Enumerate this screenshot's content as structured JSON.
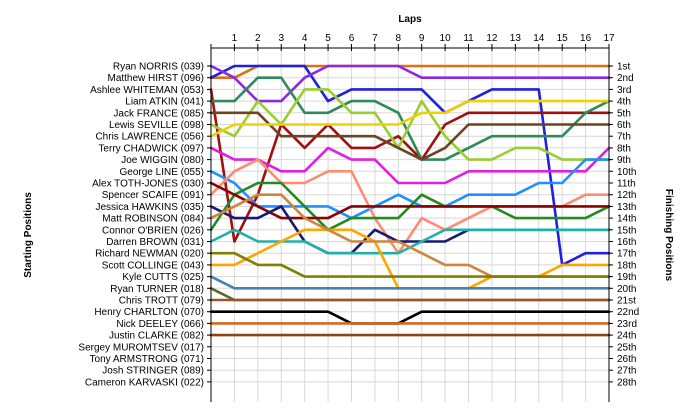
{
  "chart_data": {
    "type": "line",
    "title": "",
    "xlabel": "Laps",
    "ylabel_left": "Starting Positions",
    "ylabel_right": "Finishing Positions",
    "xlim": [
      0,
      17
    ],
    "laps": [
      1,
      2,
      3,
      4,
      5,
      6,
      7,
      8,
      9,
      10,
      11,
      12,
      13,
      14,
      15,
      16,
      17
    ],
    "ylim": [
      1,
      27
    ],
    "grid": true,
    "y_inverted": true,
    "drivers": [
      "Ryan NORRIS (039)",
      "Matthew HIRST (096)",
      "Ashlee WHITEMAN (053)",
      "Liam ATKIN (041)",
      "Jack FRANCE (085)",
      "Lewis SEVILLE (098)",
      "Chris LAWRENCE (056)",
      "Terry CHADWICK (097)",
      "Joe WIGGIN (080)",
      "George LINE (055)",
      "Alex TOTH-JONES (030)",
      "Spencer SCAIFE (091)",
      "Jessica HAWKINS (035)",
      "Matt ROBINSON (084)",
      "Connor O'BRIEN (026)",
      "Darren BROWN (031)",
      "Richard NEWMAN (020)",
      "Scott COLLINGE (043)",
      "Kyle CUTTS (025)",
      "Ryan TURNER (018)",
      "Chris TROTT (079)",
      "Henry CHARLTON (070)",
      "Nick DEELEY (066)",
      "Justin CLARKE (082)",
      "Sergey MUROMTSEV (017)",
      "Tony ARMSTRONG (071)",
      "Josh STRINGER (089)",
      "Cameron KARVASKI (022)"
    ],
    "finishing_labels": [
      "1st",
      "2nd",
      "3rd",
      "4th",
      "5th",
      "6th",
      "7th",
      "8th",
      "9th",
      "10th",
      "11th",
      "12th",
      "13th",
      "14th",
      "15th",
      "16th",
      "17th",
      "18th",
      "19th",
      "20th",
      "21st",
      "22nd",
      "23rd",
      "24th",
      "25th",
      "26th",
      "27th",
      "28th"
    ],
    "series": [
      {
        "color": "#e07010",
        "positions": [
          2,
          2,
          1,
          1,
          1,
          1,
          1,
          1,
          1,
          1,
          1,
          1,
          1,
          1,
          1,
          1,
          1,
          1
        ]
      },
      {
        "color": "#2020e0",
        "positions": [
          2,
          1,
          1,
          1,
          1,
          4,
          3,
          3,
          3,
          3,
          5,
          4,
          3,
          3,
          3,
          18,
          17,
          17
        ]
      },
      {
        "color": "#8a2be2",
        "positions": [
          1,
          2,
          4,
          4,
          2,
          1,
          1,
          1,
          1,
          2,
          2,
          2,
          2,
          2,
          2,
          2,
          2,
          2
        ]
      },
      {
        "color": "#a01010",
        "positions": [
          3,
          16,
          12,
          6,
          8,
          6,
          8,
          8,
          7,
          9,
          6,
          5,
          5,
          5,
          5,
          5,
          5,
          5
        ]
      },
      {
        "color": "#2e8b57",
        "positions": [
          4,
          4,
          2,
          2,
          5,
          5,
          4,
          4,
          5,
          9,
          9,
          8,
          7,
          7,
          7,
          7,
          5,
          4
        ]
      },
      {
        "color": "#9acd32",
        "positions": [
          6,
          7,
          4,
          6,
          3,
          3,
          5,
          5,
          8,
          4,
          7,
          9,
          9,
          8,
          8,
          9,
          9,
          9
        ]
      },
      {
        "color": "#6b4423",
        "positions": [
          5,
          5,
          5,
          7,
          7,
          7,
          7,
          7,
          8,
          9,
          8,
          6,
          6,
          6,
          6,
          6,
          6,
          6
        ]
      },
      {
        "color": "#f0d000",
        "positions": [
          7,
          6,
          6,
          6,
          6,
          6,
          6,
          6,
          6,
          5,
          5,
          4,
          4,
          4,
          4,
          4,
          4,
          4
        ]
      },
      {
        "color": "#e020e0",
        "positions": [
          8,
          9,
          9,
          10,
          10,
          8,
          9,
          9,
          11,
          11,
          11,
          10,
          10,
          10,
          10,
          10,
          10,
          8
        ]
      },
      {
        "color": "#1e90ff",
        "positions": [
          10,
          11,
          13,
          13,
          13,
          13,
          14,
          13,
          12,
          13,
          13,
          12,
          12,
          12,
          11,
          11,
          9,
          9
        ]
      },
      {
        "color": "#ff8c70",
        "positions": [
          12,
          10,
          9,
          11,
          11,
          10,
          10,
          14,
          17,
          14,
          15,
          14,
          13,
          13,
          13,
          13,
          12,
          12
        ]
      },
      {
        "color": "#228b22",
        "positions": [
          15,
          12,
          11,
          11,
          13,
          15,
          14,
          14,
          14,
          12,
          13,
          13,
          13,
          14,
          14,
          14,
          14,
          13
        ]
      },
      {
        "color": "#8b0000",
        "positions": [
          11,
          12,
          13,
          14,
          14,
          14,
          13,
          13,
          13,
          13,
          13,
          13,
          13,
          13,
          13,
          13,
          13,
          13
        ]
      },
      {
        "color": "#191970",
        "positions": [
          13,
          14,
          14,
          13,
          16,
          17,
          17,
          15,
          16,
          16,
          16,
          15,
          15,
          15,
          15,
          15,
          15,
          15
        ]
      },
      {
        "color": "#20b2aa",
        "positions": [
          16,
          15,
          16,
          16,
          16,
          17,
          17,
          17,
          17,
          16,
          15,
          15,
          15,
          15,
          15,
          15,
          15,
          15
        ]
      },
      {
        "color": "#ffa500",
        "positions": [
          18,
          18,
          17,
          16,
          15,
          15,
          15,
          16,
          20,
          20,
          20,
          20,
          19,
          19,
          19,
          18,
          18,
          18
        ]
      },
      {
        "color": "#cd853f",
        "positions": [
          14,
          13,
          12,
          12,
          14,
          15,
          16,
          16,
          16,
          17,
          18,
          18,
          19,
          19,
          19,
          19,
          19,
          19
        ]
      },
      {
        "color": "#808000",
        "positions": [
          17,
          17,
          18,
          18,
          19,
          19,
          19,
          19,
          19,
          19,
          19,
          19,
          19,
          19,
          19,
          19,
          19,
          19
        ]
      },
      {
        "color": "#4682b4",
        "positions": [
          19,
          20,
          20,
          20,
          20,
          20,
          20,
          20,
          20,
          20,
          20,
          20,
          20,
          20,
          20,
          20,
          20,
          20
        ]
      },
      {
        "color": "#556b2f",
        "positions": [
          20,
          21,
          21,
          21,
          21,
          21,
          21,
          21,
          21,
          21,
          21,
          21,
          21,
          21,
          21,
          21,
          21,
          21
        ]
      },
      {
        "color": "#a0522d",
        "positions": [
          21,
          21,
          21,
          21,
          21,
          21,
          21,
          21,
          21,
          21,
          21,
          21,
          21,
          21,
          21,
          21,
          21,
          21
        ]
      },
      {
        "color": "#000000",
        "positions": [
          22,
          22,
          22,
          22,
          22,
          22,
          23,
          23,
          23,
          22,
          22,
          22,
          22,
          22,
          22,
          22,
          22,
          22
        ]
      },
      {
        "color": "#d2691e",
        "positions": [
          23,
          23,
          23,
          23,
          23,
          23,
          23,
          23,
          23,
          23,
          23,
          23,
          23,
          23,
          23,
          23,
          23,
          23
        ]
      },
      {
        "color": "#8b4513",
        "positions": [
          24,
          24,
          24,
          24,
          24,
          24,
          24,
          24,
          24,
          24,
          24,
          24,
          24,
          24,
          24,
          24,
          24,
          24
        ]
      }
    ]
  }
}
